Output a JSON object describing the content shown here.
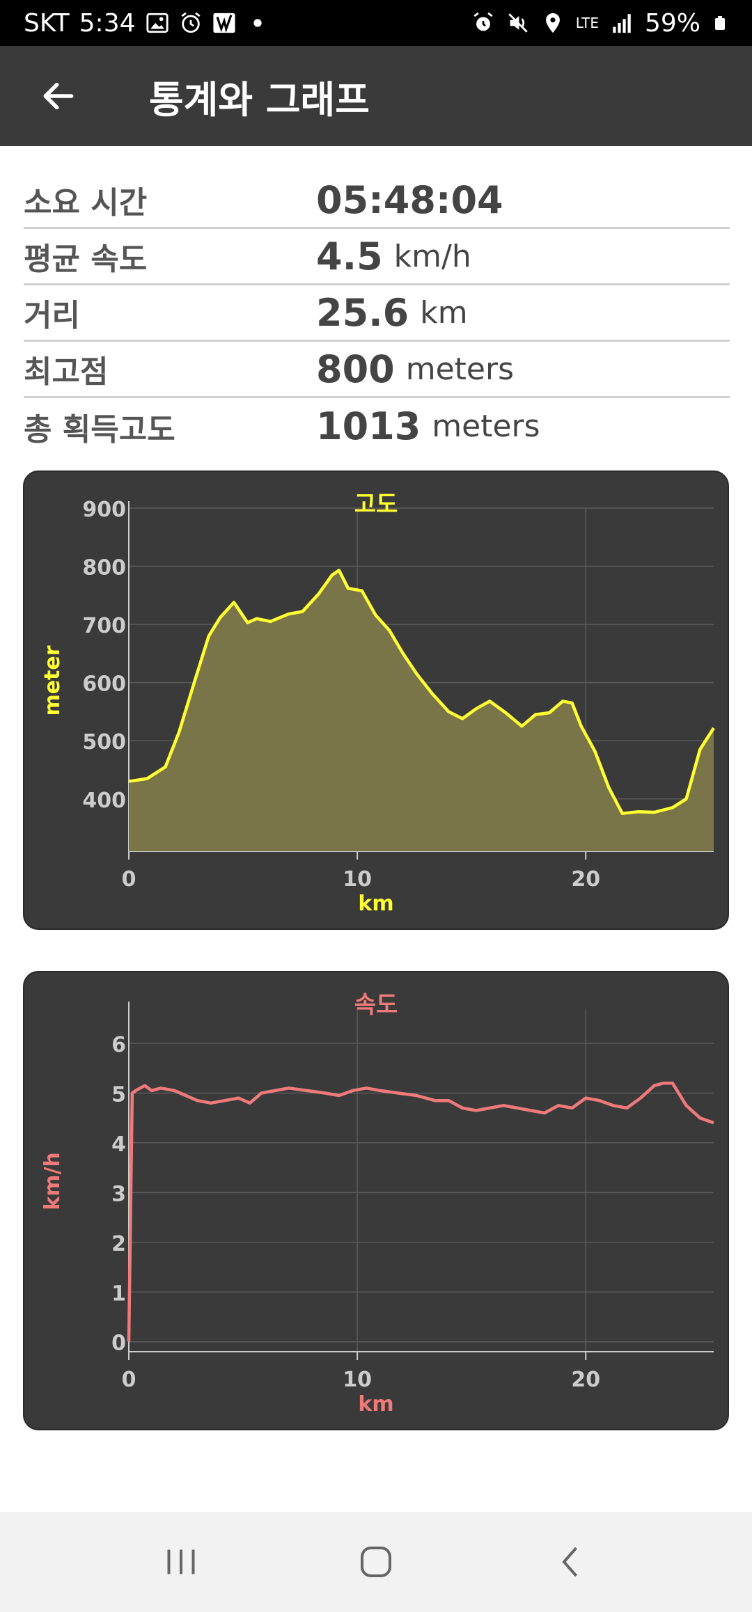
{
  "status_bar": {
    "carrier": "SKT",
    "time": "5:34",
    "network": "LTE",
    "battery": "59%",
    "icons_left": [
      "gallery-icon",
      "alarm-icon",
      "app-icon",
      "dot-icon"
    ],
    "icons_right": [
      "alarm-icon",
      "mute-icon",
      "location-icon",
      "lte-icon",
      "signal-icon",
      "battery-icon"
    ]
  },
  "app_bar": {
    "title": "통계와 그래프",
    "back_icon": "arrow-left-icon"
  },
  "stats": [
    {
      "label": "소요 시간",
      "value": "05:48:04",
      "unit": ""
    },
    {
      "label": "평균 속도",
      "value": "4.5",
      "unit": "km/h"
    },
    {
      "label": "거리",
      "value": "25.6",
      "unit": "km"
    },
    {
      "label": "최고점",
      "value": "800",
      "unit": "meters"
    },
    {
      "label": "총 획득고도",
      "value": "1013",
      "unit": "meters"
    }
  ],
  "chart_data": [
    {
      "type": "area",
      "title": "고도",
      "xlabel": "km",
      "ylabel": "meter",
      "color": "#ffff33",
      "fill": "#7a7548",
      "xlim": [
        0,
        25.6
      ],
      "ylim": [
        310,
        900
      ],
      "xticks": [
        0,
        10,
        20
      ],
      "yticks": [
        400,
        500,
        600,
        700,
        800,
        900
      ],
      "grid": true,
      "x": [
        0,
        0.8,
        1.6,
        2.2,
        2.9,
        3.5,
        4.0,
        4.6,
        5.2,
        5.6,
        6.2,
        7.0,
        7.6,
        8.3,
        8.9,
        9.2,
        9.6,
        10.2,
        10.8,
        11.4,
        12.0,
        12.6,
        13.3,
        14.0,
        14.6,
        15.2,
        15.8,
        16.5,
        17.2,
        17.8,
        18.4,
        19.0,
        19.4,
        19.8,
        20.4,
        21.0,
        21.6,
        22.3,
        23.0,
        23.8,
        24.4,
        25.0,
        25.6
      ],
      "y": [
        430,
        435,
        455,
        515,
        605,
        680,
        712,
        738,
        703,
        710,
        705,
        718,
        722,
        752,
        785,
        793,
        762,
        758,
        716,
        690,
        650,
        615,
        580,
        550,
        538,
        555,
        568,
        548,
        525,
        545,
        548,
        568,
        565,
        525,
        482,
        420,
        375,
        378,
        377,
        385,
        400,
        485,
        522
      ]
    },
    {
      "type": "line",
      "title": "속도",
      "xlabel": "km",
      "ylabel": "km/h",
      "color": "#f07a7a",
      "xlim": [
        0,
        25.6
      ],
      "ylim": [
        -0.2,
        6.7
      ],
      "xticks": [
        0,
        10,
        20
      ],
      "yticks": [
        0,
        1,
        2,
        3,
        4,
        5,
        6
      ],
      "grid": true,
      "x": [
        0,
        0.15,
        0.3,
        0.7,
        1.0,
        1.4,
        2.0,
        2.5,
        3.0,
        3.6,
        4.2,
        4.8,
        5.3,
        5.8,
        6.4,
        7.0,
        7.8,
        8.6,
        9.2,
        9.8,
        10.4,
        11.0,
        11.8,
        12.6,
        13.4,
        14.0,
        14.6,
        15.2,
        15.8,
        16.4,
        17.0,
        17.6,
        18.2,
        18.8,
        19.4,
        20.0,
        20.6,
        21.2,
        21.8,
        22.4,
        23.0,
        23.4,
        23.8,
        24.4,
        25.0,
        25.6
      ],
      "y": [
        0,
        5.0,
        5.05,
        5.15,
        5.05,
        5.1,
        5.05,
        4.95,
        4.85,
        4.8,
        4.85,
        4.9,
        4.8,
        5.0,
        5.05,
        5.1,
        5.05,
        5.0,
        4.95,
        5.05,
        5.1,
        5.05,
        5.0,
        4.95,
        4.85,
        4.85,
        4.7,
        4.65,
        4.7,
        4.75,
        4.7,
        4.65,
        4.6,
        4.75,
        4.7,
        4.9,
        4.85,
        4.75,
        4.7,
        4.9,
        5.15,
        5.2,
        5.2,
        4.75,
        4.5,
        4.4
      ]
    }
  ],
  "nav_bar": {
    "icons": [
      "recents-icon",
      "home-icon",
      "back-icon"
    ]
  }
}
